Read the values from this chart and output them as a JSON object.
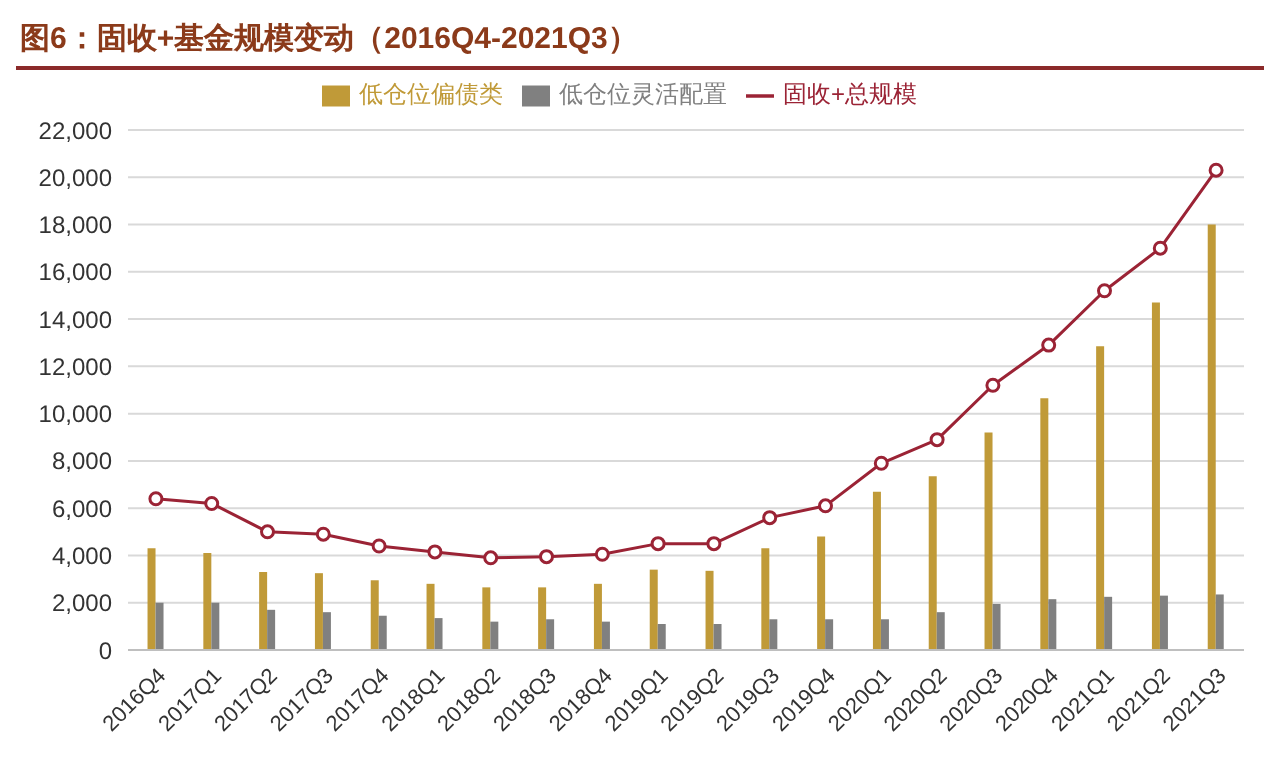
{
  "chart_data": {
    "type": "bar",
    "title": "图6：固收+基金规模变动（2016Q4-2021Q3）",
    "categories": [
      "2016Q4",
      "2017Q1",
      "2017Q2",
      "2017Q3",
      "2017Q4",
      "2018Q1",
      "2018Q2",
      "2018Q3",
      "2018Q4",
      "2019Q1",
      "2019Q2",
      "2019Q3",
      "2019Q4",
      "2020Q1",
      "2020Q2",
      "2020Q3",
      "2020Q4",
      "2021Q1",
      "2021Q2",
      "2021Q3"
    ],
    "series": [
      {
        "name": "低仓位偏债类",
        "color": "#c09a38",
        "values": [
          4300,
          4100,
          3300,
          3250,
          2950,
          2800,
          2650,
          2650,
          2800,
          3400,
          3350,
          4300,
          4800,
          6700,
          7350,
          9200,
          10650,
          12850,
          14700,
          18000
        ]
      },
      {
        "name": "低仓位灵活配置",
        "color": "#808080",
        "values": [
          2000,
          2000,
          1700,
          1600,
          1450,
          1350,
          1200,
          1300,
          1200,
          1100,
          1100,
          1300,
          1300,
          1300,
          1600,
          1950,
          2150,
          2250,
          2300,
          2350
        ]
      },
      {
        "name": "固收+总规模",
        "type": "line",
        "color": "#9b2335",
        "marker": "circle",
        "values": [
          6400,
          6200,
          5000,
          4900,
          4400,
          4150,
          3900,
          3950,
          4050,
          4500,
          4500,
          5600,
          6100,
          7900,
          8900,
          11200,
          12900,
          15200,
          17000,
          20300
        ]
      }
    ],
    "ylim": [
      0,
      22000
    ],
    "yticks": [
      {
        "value": 0,
        "label": "0"
      },
      {
        "value": 2000,
        "label": "2,000"
      },
      {
        "value": 4000,
        "label": "4,000"
      },
      {
        "value": 6000,
        "label": "6,000"
      },
      {
        "value": 8000,
        "label": "8,000"
      },
      {
        "value": 10000,
        "label": "10,000"
      },
      {
        "value": 12000,
        "label": "12,000"
      },
      {
        "value": 14000,
        "label": "14,000"
      },
      {
        "value": 16000,
        "label": "16,000"
      },
      {
        "value": 18000,
        "label": "18,000"
      },
      {
        "value": 20000,
        "label": "20,000"
      },
      {
        "value": 22000,
        "label": "22,000"
      }
    ],
    "grid": "y",
    "legend": "top"
  }
}
